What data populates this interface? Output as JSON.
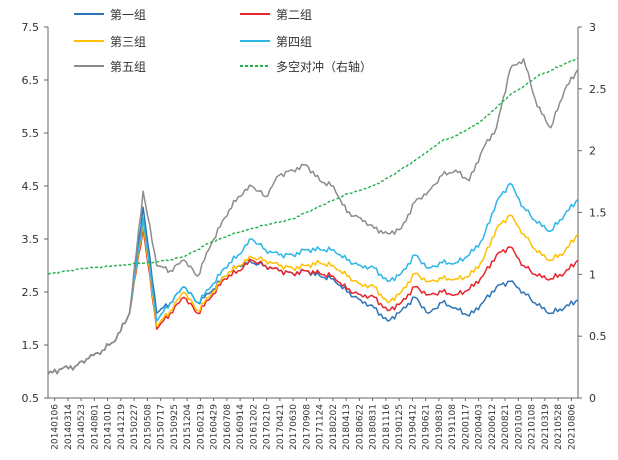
{
  "chart_data": {
    "type": "line",
    "title": "",
    "xlabel": "",
    "ylabel": "",
    "ylim_left": [
      0.5,
      7.5
    ],
    "ylim_right": [
      0,
      3
    ],
    "yticks_left": [
      "0.5",
      "1.5",
      "2.5",
      "3.5",
      "4.5",
      "5.5",
      "6.5",
      "7.5"
    ],
    "yticks_right": [
      "0",
      "0.5",
      "1",
      "1.5",
      "2",
      "2.5",
      "3"
    ],
    "x_labels": [
      "20140106",
      "20140314",
      "20140523",
      "20140801",
      "20141010",
      "20141219",
      "20150227",
      "20150508",
      "20150717",
      "20150925",
      "20151204",
      "20160219",
      "20160429",
      "20160708",
      "20160914",
      "20161202",
      "20170210",
      "20170421",
      "20170630",
      "20170908",
      "20171124",
      "20180202",
      "20180413",
      "20180622",
      "20180831",
      "20181116",
      "20190125",
      "20190412",
      "20190621",
      "20190830",
      "20191108",
      "20200117",
      "20200403",
      "20200612",
      "20200821",
      "20201030",
      "20210108",
      "20210319",
      "20210528",
      "20210806"
    ],
    "legend": {
      "placement": "top",
      "entries": [
        "第一组",
        "第二组",
        "第三组",
        "第四组",
        "第五组",
        "多空对冲（右轴）"
      ]
    },
    "series": [
      {
        "name": "第一组",
        "axis": "left",
        "color": "#2E75B6",
        "values": [
          0.95,
          1.05,
          1.1,
          1.25,
          1.4,
          1.6,
          2.1,
          4.1,
          2.1,
          2.3,
          2.6,
          2.3,
          2.5,
          2.8,
          3.0,
          3.05,
          3.0,
          2.9,
          2.85,
          2.9,
          2.8,
          2.75,
          2.5,
          2.35,
          2.2,
          1.95,
          2.15,
          2.4,
          2.1,
          2.3,
          2.2,
          2.05,
          2.3,
          2.6,
          2.7,
          2.5,
          2.25,
          2.1,
          2.2,
          2.35
        ]
      },
      {
        "name": "第二组",
        "axis": "left",
        "color": "#E8242C",
        "values": [
          0.95,
          1.05,
          1.1,
          1.25,
          1.4,
          1.6,
          2.1,
          3.7,
          1.8,
          2.1,
          2.4,
          2.1,
          2.4,
          2.75,
          2.9,
          3.1,
          3.0,
          2.9,
          2.85,
          2.9,
          2.85,
          2.8,
          2.55,
          2.45,
          2.4,
          2.15,
          2.3,
          2.6,
          2.45,
          2.5,
          2.45,
          2.55,
          2.8,
          3.2,
          3.35,
          3.0,
          2.8,
          2.75,
          2.85,
          3.1
        ]
      },
      {
        "name": "第三组",
        "axis": "left",
        "color": "#FFC000",
        "values": [
          0.95,
          1.05,
          1.1,
          1.25,
          1.4,
          1.6,
          2.1,
          3.8,
          1.85,
          2.15,
          2.5,
          2.15,
          2.45,
          2.8,
          3.0,
          3.15,
          3.1,
          3.0,
          2.95,
          3.0,
          3.05,
          3.0,
          2.8,
          2.65,
          2.6,
          2.3,
          2.5,
          2.85,
          2.7,
          2.75,
          2.75,
          2.8,
          3.1,
          3.7,
          3.95,
          3.6,
          3.25,
          3.1,
          3.25,
          3.6
        ]
      },
      {
        "name": "第四组",
        "axis": "left",
        "color": "#2BB5E8",
        "values": [
          0.95,
          1.05,
          1.1,
          1.25,
          1.4,
          1.6,
          2.1,
          3.9,
          1.95,
          2.3,
          2.6,
          2.3,
          2.6,
          2.95,
          3.2,
          3.5,
          3.3,
          3.2,
          3.2,
          3.3,
          3.3,
          3.3,
          3.1,
          3.0,
          2.95,
          2.7,
          2.85,
          3.2,
          2.95,
          3.05,
          3.05,
          3.2,
          3.5,
          4.2,
          4.55,
          4.1,
          3.8,
          3.65,
          3.95,
          4.25
        ]
      },
      {
        "name": "第五组",
        "axis": "left",
        "color": "#8C8C8C",
        "values": [
          0.95,
          1.05,
          1.1,
          1.25,
          1.4,
          1.6,
          2.1,
          4.4,
          3.0,
          2.9,
          3.1,
          2.8,
          3.4,
          3.9,
          4.3,
          4.5,
          4.3,
          4.7,
          4.8,
          4.9,
          4.6,
          4.5,
          4.0,
          3.9,
          3.7,
          3.6,
          3.7,
          4.2,
          4.4,
          4.7,
          4.8,
          4.6,
          5.2,
          5.6,
          6.7,
          6.9,
          6.0,
          5.6,
          6.3,
          6.7
        ]
      },
      {
        "name": "多空对冲（右轴）",
        "axis": "right",
        "color": "#22B14C",
        "dashed": true,
        "values": [
          1.0,
          1.02,
          1.04,
          1.05,
          1.06,
          1.07,
          1.08,
          1.09,
          1.1,
          1.12,
          1.14,
          1.2,
          1.26,
          1.3,
          1.34,
          1.37,
          1.4,
          1.42,
          1.45,
          1.5,
          1.55,
          1.6,
          1.65,
          1.68,
          1.72,
          1.78,
          1.85,
          1.92,
          2.0,
          2.08,
          2.12,
          2.18,
          2.25,
          2.35,
          2.45,
          2.52,
          2.6,
          2.65,
          2.7,
          2.75
        ]
      }
    ]
  }
}
